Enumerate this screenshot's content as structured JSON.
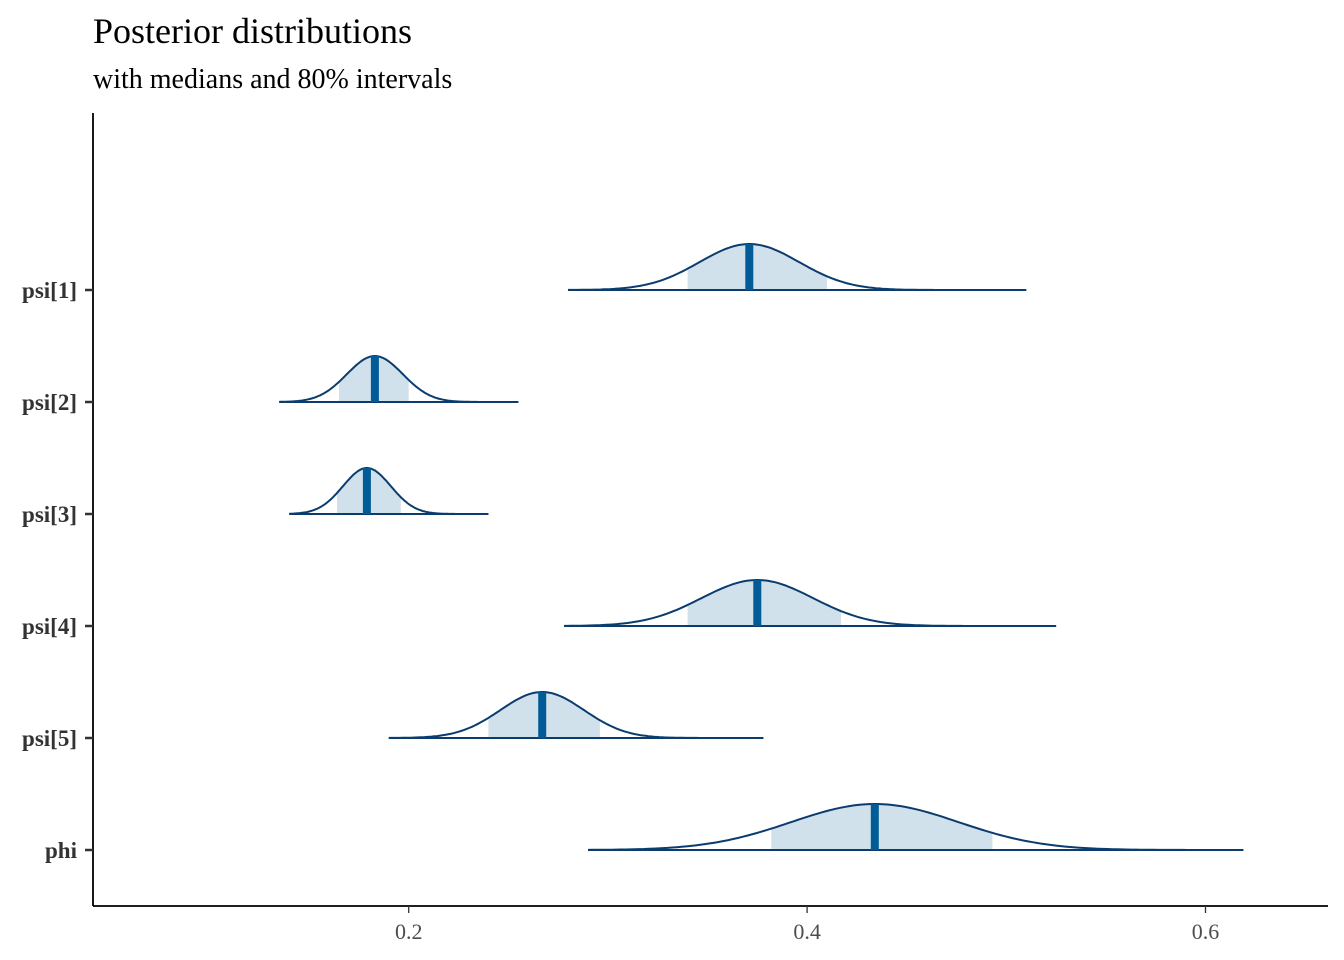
{
  "chart_data": {
    "type": "ridgeline",
    "title": "Posterior distributions",
    "subtitle": "with medians and 80% intervals",
    "xlabel": "",
    "ylabel": "",
    "xlim": [
      0.0415,
      0.6615
    ],
    "x_ticks": [
      0.2,
      0.4,
      0.6
    ],
    "x_tick_labels": [
      "0.2",
      "0.4",
      "0.6"
    ],
    "grid": false,
    "colors": {
      "band": "#d1e1ec",
      "outline": "#0b3c6e",
      "median": "#005b96"
    },
    "series": [
      {
        "name": "psi[1]",
        "median": 0.371,
        "interval80": [
          0.34,
          0.41
        ],
        "range": [
          0.28,
          0.51
        ],
        "sd": 0.025
      },
      {
        "name": "psi[2]",
        "median": 0.183,
        "interval80": [
          0.165,
          0.2
        ],
        "range": [
          0.135,
          0.255
        ],
        "sd": 0.014
      },
      {
        "name": "psi[3]",
        "median": 0.179,
        "interval80": [
          0.164,
          0.196
        ],
        "range": [
          0.14,
          0.24
        ],
        "sd": 0.012
      },
      {
        "name": "psi[4]",
        "median": 0.375,
        "interval80": [
          0.34,
          0.417
        ],
        "range": [
          0.278,
          0.525
        ],
        "sd": 0.028
      },
      {
        "name": "psi[5]",
        "median": 0.267,
        "interval80": [
          0.24,
          0.296
        ],
        "range": [
          0.19,
          0.378
        ],
        "sd": 0.021
      },
      {
        "name": "phi",
        "median": 0.434,
        "interval80": [
          0.382,
          0.493
        ],
        "range": [
          0.29,
          0.619
        ],
        "sd": 0.042
      }
    ]
  }
}
